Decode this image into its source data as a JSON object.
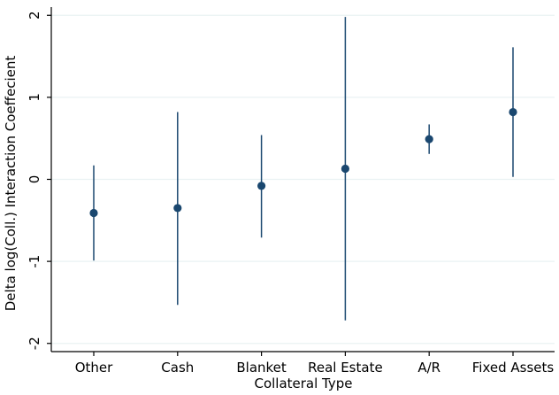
{
  "chart_data": {
    "type": "scatter",
    "xlabel": "Collateral Type",
    "ylabel": "Delta log(Coll.) Interaction Coeffecient",
    "categories": [
      "Other",
      "Cash",
      "Blanket",
      "Real Estate",
      "A/R",
      "Fixed Assets"
    ],
    "ylim": [
      -2.1,
      2.1
    ],
    "yticks": [
      -2,
      -1,
      0,
      1,
      2
    ],
    "ytick_labels": [
      "-2",
      "-1",
      "0",
      "1",
      "2"
    ],
    "grid": "horizontal",
    "series": [
      {
        "values": [
          -0.41,
          -0.35,
          -0.08,
          0.13,
          0.49,
          0.82
        ],
        "ci_low": [
          -0.99,
          -1.53,
          -0.71,
          -1.72,
          0.31,
          0.03
        ],
        "ci_high": [
          0.17,
          0.82,
          0.54,
          1.98,
          0.67,
          1.61
        ]
      }
    ],
    "colors": {
      "marker": "#1a476f",
      "grid": "#eaf2f3",
      "axis": "#000000"
    }
  }
}
